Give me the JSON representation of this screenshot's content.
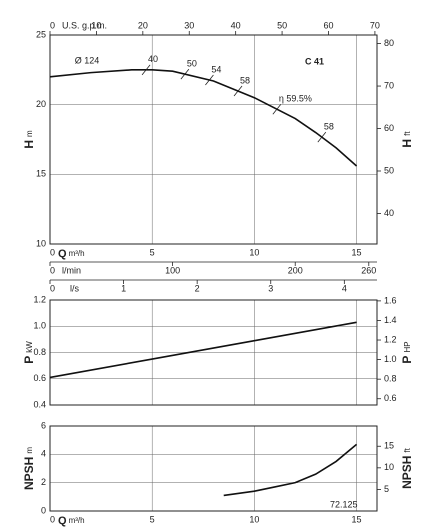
{
  "chart_data": [
    {
      "type": "line",
      "title": "C 41",
      "xlabel": "Q",
      "xunit": "m³/h",
      "ylabel": "H",
      "yunit": "m",
      "y2label": "H",
      "y2unit": "ft",
      "x": [
        0,
        2,
        4,
        5,
        6,
        8,
        10,
        12,
        13,
        14,
        15
      ],
      "values": [
        22.0,
        22.3,
        22.5,
        22.5,
        22.4,
        21.7,
        20.5,
        19.0,
        18.0,
        16.9,
        15.6
      ],
      "xlim": [
        0,
        16
      ],
      "xticks": [
        0,
        5,
        10,
        15
      ],
      "ylim": [
        10,
        25
      ],
      "yticks": [
        10,
        15,
        20,
        25
      ],
      "y2lim": [
        32.81,
        82.02
      ],
      "y2ticks": [
        40,
        50,
        60,
        70,
        80
      ],
      "extra_axes": [
        {
          "label": "U.S. g.p.m.",
          "lim": [
            0,
            70.45
          ],
          "ticks": [
            0,
            10,
            20,
            30,
            40,
            50,
            60,
            70
          ]
        },
        {
          "label": "l/min",
          "lim": [
            0,
            266.7
          ],
          "ticks": [
            0,
            100,
            200,
            260
          ]
        },
        {
          "label": "l/s",
          "lim": [
            0,
            4.444
          ],
          "ticks": [
            0,
            1,
            2,
            3,
            4
          ]
        }
      ],
      "annotations": [
        "Ø 124",
        "40",
        "50",
        "54",
        "58",
        "η 59.5%",
        "58"
      ],
      "grid": true
    },
    {
      "type": "line",
      "ylabel": "P",
      "yunit": "kW",
      "y2label": "P",
      "y2unit": "HP",
      "x": [
        0,
        5,
        10,
        15
      ],
      "values": [
        0.61,
        0.75,
        0.89,
        1.03
      ],
      "xlim": [
        0,
        16
      ],
      "xticks": [
        0,
        5,
        10,
        15
      ],
      "ylim": [
        0.4,
        1.2
      ],
      "yticks": [
        0.4,
        0.6,
        0.8,
        {
          "value": 1.0,
          "label": "1.0"
        },
        1.2
      ],
      "y2lim": [
        0.536,
        1.609
      ],
      "y2ticks": [
        0.6,
        0.8,
        {
          "value": 1.0,
          "label": "1.0"
        },
        1.2,
        1.4,
        1.6
      ],
      "grid": true
    },
    {
      "type": "line",
      "xlabel": "Q",
      "xunit": "m³/h",
      "ylabel": "NPSH",
      "yunit": "m",
      "y2label": "NPSH",
      "y2unit": "ft",
      "x": [
        8.5,
        10,
        11,
        12,
        13,
        14,
        15
      ],
      "values": [
        1.1,
        1.4,
        1.7,
        2.0,
        2.6,
        3.5,
        4.7
      ],
      "xlim": [
        0,
        16
      ],
      "xticks": [
        0,
        5,
        10,
        15
      ],
      "ylim": [
        0,
        6
      ],
      "yticks": [
        0,
        2,
        4,
        6
      ],
      "y2lim": [
        0,
        19.69
      ],
      "y2ticks": [
        5,
        10,
        15
      ],
      "footnote": "72.125",
      "grid": true
    }
  ]
}
